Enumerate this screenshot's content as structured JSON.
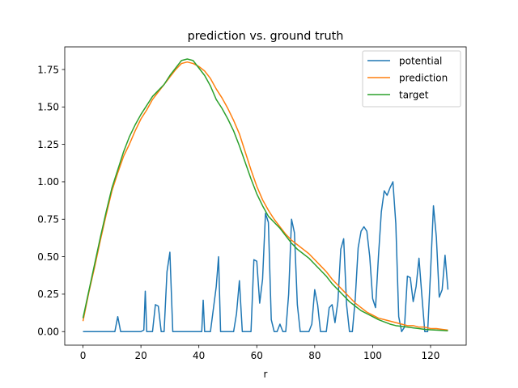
{
  "chart_data": {
    "type": "line",
    "title": "prediction vs. ground truth",
    "xlabel": "r",
    "ylabel": "",
    "xlim": [
      -6.3,
      132.3
    ],
    "ylim": [
      -0.0905,
      1.901
    ],
    "xticks": [
      0,
      20,
      40,
      60,
      80,
      100,
      120
    ],
    "xtick_labels": [
      "0",
      "20",
      "40",
      "60",
      "80",
      "100",
      "120"
    ],
    "yticks": [
      0.0,
      0.25,
      0.5,
      0.75,
      1.0,
      1.25,
      1.5,
      1.75
    ],
    "ytick_labels": [
      "0.00",
      "0.25",
      "0.50",
      "0.75",
      "1.00",
      "1.25",
      "1.50",
      "1.75"
    ],
    "grid": false,
    "legend_position": "upper right",
    "series": [
      {
        "name": "potential",
        "color": "#1f77b4",
        "points": [
          [
            0,
            0.0
          ],
          [
            11,
            0.0
          ],
          [
            12,
            0.1
          ],
          [
            13,
            0.0
          ],
          [
            20,
            0.0
          ],
          [
            21,
            0.01
          ],
          [
            21.5,
            0.27
          ],
          [
            22,
            0.0
          ],
          [
            24,
            0.0
          ],
          [
            25,
            0.18
          ],
          [
            26,
            0.17
          ],
          [
            27,
            0.0
          ],
          [
            28,
            0.0
          ],
          [
            29,
            0.4
          ],
          [
            30,
            0.53
          ],
          [
            31,
            0.0
          ],
          [
            41,
            0.0
          ],
          [
            41.5,
            0.21
          ],
          [
            42,
            0.0
          ],
          [
            44,
            0.0
          ],
          [
            46,
            0.3
          ],
          [
            46.8,
            0.5
          ],
          [
            47.5,
            0.0
          ],
          [
            52,
            0.0
          ],
          [
            53,
            0.12
          ],
          [
            54,
            0.34
          ],
          [
            55,
            0.0
          ],
          [
            58,
            0.0
          ],
          [
            59,
            0.48
          ],
          [
            60,
            0.47
          ],
          [
            61,
            0.19
          ],
          [
            62,
            0.35
          ],
          [
            63,
            0.79
          ],
          [
            64,
            0.73
          ],
          [
            65,
            0.08
          ],
          [
            66,
            0.0
          ],
          [
            67,
            0.0
          ],
          [
            68,
            0.05
          ],
          [
            69,
            0.0
          ],
          [
            70,
            0.0
          ],
          [
            71,
            0.25
          ],
          [
            72,
            0.75
          ],
          [
            73,
            0.66
          ],
          [
            74,
            0.18
          ],
          [
            75,
            0.0
          ],
          [
            78,
            0.0
          ],
          [
            79,
            0.05
          ],
          [
            80,
            0.28
          ],
          [
            81,
            0.18
          ],
          [
            82,
            0.0
          ],
          [
            84,
            0.0
          ],
          [
            85,
            0.16
          ],
          [
            86,
            0.18
          ],
          [
            87,
            0.06
          ],
          [
            88,
            0.2
          ],
          [
            89,
            0.55
          ],
          [
            90,
            0.62
          ],
          [
            91,
            0.18
          ],
          [
            92,
            0.0
          ],
          [
            93,
            0.0
          ],
          [
            94,
            0.22
          ],
          [
            95,
            0.56
          ],
          [
            96,
            0.67
          ],
          [
            97,
            0.7
          ],
          [
            98,
            0.67
          ],
          [
            99,
            0.5
          ],
          [
            100,
            0.22
          ],
          [
            101,
            0.16
          ],
          [
            102,
            0.5
          ],
          [
            103,
            0.8
          ],
          [
            104,
            0.94
          ],
          [
            105,
            0.91
          ],
          [
            106,
            0.96
          ],
          [
            107,
            1.0
          ],
          [
            108,
            0.72
          ],
          [
            109,
            0.1
          ],
          [
            110,
            0.0
          ],
          [
            111,
            0.03
          ],
          [
            112,
            0.37
          ],
          [
            113,
            0.36
          ],
          [
            114,
            0.2
          ],
          [
            115,
            0.3
          ],
          [
            116,
            0.49
          ],
          [
            117,
            0.24
          ],
          [
            118,
            0.0
          ],
          [
            119,
            0.0
          ],
          [
            120,
            0.4
          ],
          [
            121,
            0.84
          ],
          [
            122,
            0.63
          ],
          [
            123,
            0.23
          ],
          [
            124,
            0.28
          ],
          [
            125,
            0.51
          ],
          [
            126,
            0.28
          ]
        ]
      },
      {
        "name": "prediction",
        "color": "#ff7f0e",
        "points": [
          [
            0,
            0.07
          ],
          [
            2,
            0.26
          ],
          [
            4,
            0.43
          ],
          [
            6,
            0.61
          ],
          [
            8,
            0.78
          ],
          [
            10,
            0.94
          ],
          [
            12,
            1.06
          ],
          [
            14,
            1.17
          ],
          [
            16,
            1.25
          ],
          [
            18,
            1.34
          ],
          [
            20,
            1.42
          ],
          [
            22,
            1.48
          ],
          [
            24,
            1.55
          ],
          [
            26,
            1.6
          ],
          [
            28,
            1.65
          ],
          [
            30,
            1.7
          ],
          [
            32,
            1.75
          ],
          [
            34,
            1.79
          ],
          [
            36,
            1.8
          ],
          [
            38,
            1.79
          ],
          [
            40,
            1.77
          ],
          [
            42,
            1.74
          ],
          [
            44,
            1.69
          ],
          [
            46,
            1.62
          ],
          [
            48,
            1.56
          ],
          [
            50,
            1.49
          ],
          [
            52,
            1.41
          ],
          [
            54,
            1.32
          ],
          [
            56,
            1.2
          ],
          [
            58,
            1.08
          ],
          [
            60,
            0.97
          ],
          [
            62,
            0.88
          ],
          [
            64,
            0.81
          ],
          [
            66,
            0.75
          ],
          [
            68,
            0.7
          ],
          [
            70,
            0.65
          ],
          [
            72,
            0.61
          ],
          [
            74,
            0.58
          ],
          [
            76,
            0.55
          ],
          [
            78,
            0.52
          ],
          [
            80,
            0.48
          ],
          [
            82,
            0.44
          ],
          [
            84,
            0.4
          ],
          [
            86,
            0.35
          ],
          [
            88,
            0.31
          ],
          [
            90,
            0.27
          ],
          [
            92,
            0.23
          ],
          [
            94,
            0.19
          ],
          [
            96,
            0.16
          ],
          [
            98,
            0.13
          ],
          [
            100,
            0.11
          ],
          [
            102,
            0.09
          ],
          [
            104,
            0.08
          ],
          [
            106,
            0.07
          ],
          [
            108,
            0.06
          ],
          [
            110,
            0.05
          ],
          [
            112,
            0.04
          ],
          [
            114,
            0.04
          ],
          [
            116,
            0.03
          ],
          [
            118,
            0.03
          ],
          [
            120,
            0.02
          ],
          [
            122,
            0.02
          ],
          [
            124,
            0.015
          ],
          [
            126,
            0.01
          ]
        ]
      },
      {
        "name": "target",
        "color": "#2ca02c",
        "points": [
          [
            0,
            0.09
          ],
          [
            2,
            0.27
          ],
          [
            4,
            0.45
          ],
          [
            6,
            0.63
          ],
          [
            8,
            0.8
          ],
          [
            10,
            0.96
          ],
          [
            12,
            1.08
          ],
          [
            14,
            1.2
          ],
          [
            16,
            1.3
          ],
          [
            18,
            1.38
          ],
          [
            20,
            1.45
          ],
          [
            22,
            1.51
          ],
          [
            24,
            1.57
          ],
          [
            26,
            1.61
          ],
          [
            28,
            1.65
          ],
          [
            30,
            1.71
          ],
          [
            32,
            1.76
          ],
          [
            34,
            1.81
          ],
          [
            36,
            1.82
          ],
          [
            38,
            1.81
          ],
          [
            40,
            1.76
          ],
          [
            42,
            1.71
          ],
          [
            44,
            1.64
          ],
          [
            46,
            1.55
          ],
          [
            48,
            1.49
          ],
          [
            50,
            1.42
          ],
          [
            52,
            1.34
          ],
          [
            54,
            1.24
          ],
          [
            56,
            1.13
          ],
          [
            58,
            1.02
          ],
          [
            60,
            0.92
          ],
          [
            62,
            0.84
          ],
          [
            64,
            0.77
          ],
          [
            66,
            0.73
          ],
          [
            68,
            0.69
          ],
          [
            70,
            0.64
          ],
          [
            72,
            0.59
          ],
          [
            74,
            0.55
          ],
          [
            76,
            0.52
          ],
          [
            78,
            0.49
          ],
          [
            80,
            0.45
          ],
          [
            82,
            0.41
          ],
          [
            84,
            0.37
          ],
          [
            86,
            0.32
          ],
          [
            88,
            0.28
          ],
          [
            90,
            0.24
          ],
          [
            92,
            0.2
          ],
          [
            94,
            0.17
          ],
          [
            96,
            0.14
          ],
          [
            98,
            0.12
          ],
          [
            100,
            0.1
          ],
          [
            102,
            0.08
          ],
          [
            104,
            0.065
          ],
          [
            106,
            0.05
          ],
          [
            108,
            0.04
          ],
          [
            110,
            0.035
          ],
          [
            112,
            0.03
          ],
          [
            114,
            0.025
          ],
          [
            116,
            0.02
          ],
          [
            118,
            0.015
          ],
          [
            120,
            0.012
          ],
          [
            122,
            0.01
          ],
          [
            124,
            0.008
          ],
          [
            126,
            0.005
          ]
        ]
      }
    ]
  }
}
